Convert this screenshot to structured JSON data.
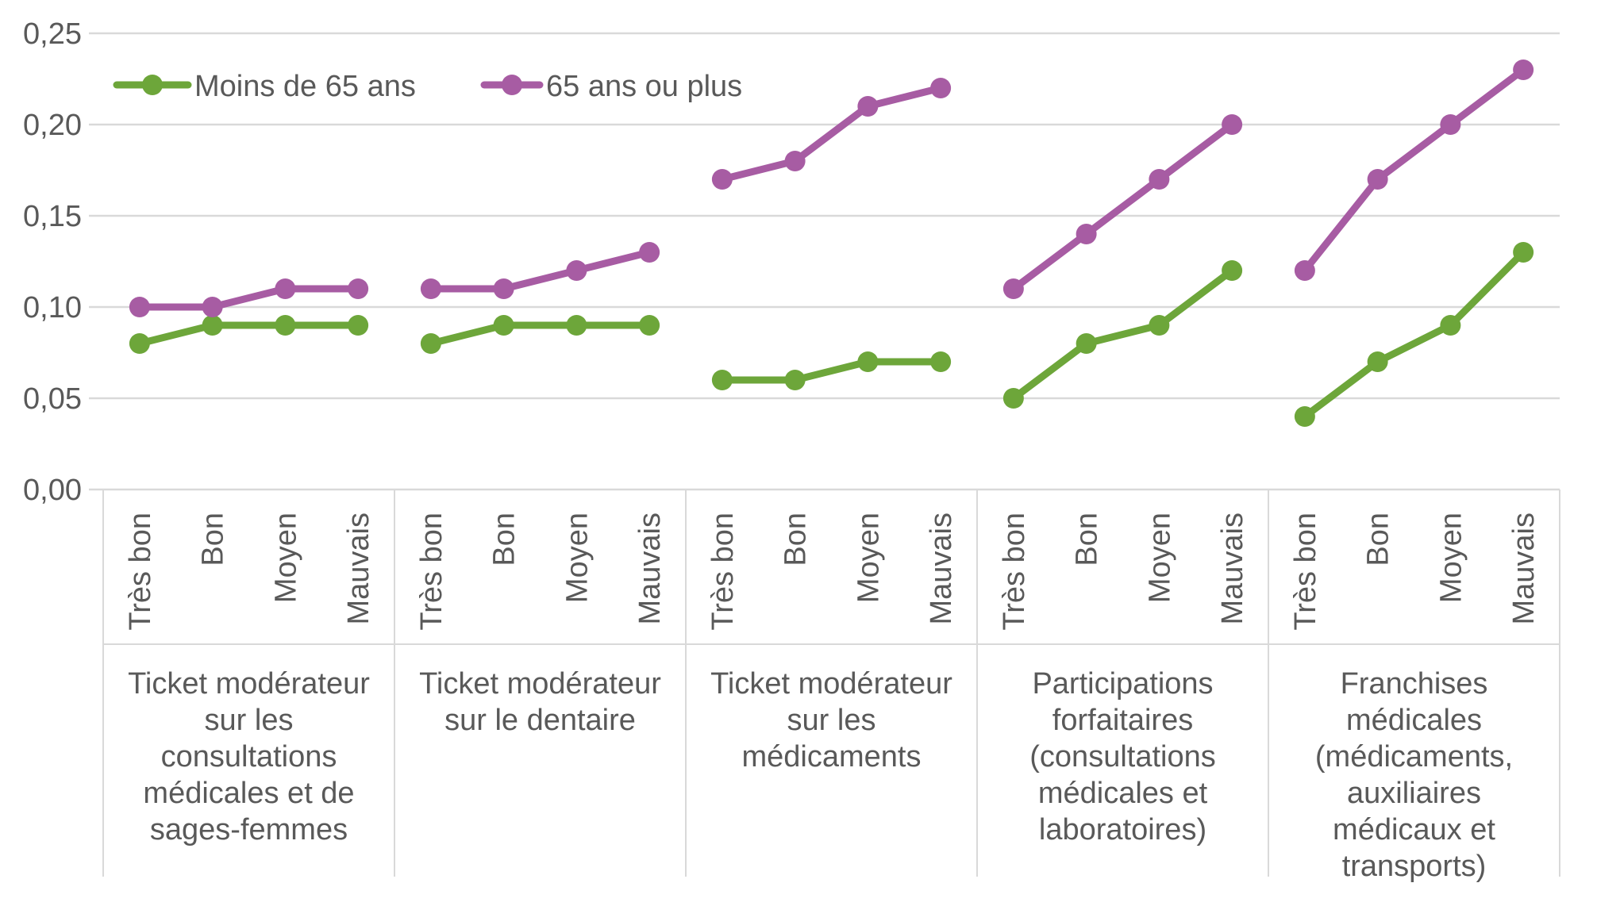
{
  "chart_data": {
    "type": "line",
    "title": "",
    "ylabel": "",
    "xlabel": "",
    "ylim": [
      0,
      0.25
    ],
    "grid": true,
    "legend_position": "top-left-inside",
    "yticks": [
      {
        "value": 0.0,
        "label": "0,00"
      },
      {
        "value": 0.05,
        "label": "0,05"
      },
      {
        "value": 0.1,
        "label": "0,10"
      },
      {
        "value": 0.15,
        "label": "0,15"
      },
      {
        "value": 0.2,
        "label": "0,20"
      },
      {
        "value": 0.25,
        "label": "0,25"
      }
    ],
    "categories_per_group": [
      "Très bon",
      "Bon",
      "Moyen",
      "Mauvais"
    ],
    "groups": [
      {
        "label": "Ticket modérateur sur les consultations médicales et de sages-femmes",
        "label_lines": [
          "Ticket modérateur",
          "sur les",
          "consultations",
          "médicales et de",
          "sages-femmes"
        ]
      },
      {
        "label": "Ticket modérateur sur le dentaire",
        "label_lines": [
          "Ticket modérateur",
          "sur le dentaire"
        ]
      },
      {
        "label": "Ticket modérateur sur les médicaments",
        "label_lines": [
          "Ticket modérateur",
          "sur les",
          "médicaments"
        ]
      },
      {
        "label": "Participations forfaitaires (consultations médicales et laboratoires)",
        "label_lines": [
          "Participations",
          "forfaitaires",
          "(consultations",
          "médicales et",
          "laboratoires)"
        ]
      },
      {
        "label": "Franchises médicales (médicaments, auxiliaires médicaux et transports)",
        "label_lines": [
          "Franchises",
          "médicales",
          "(médicaments,",
          "auxiliaires",
          "médicaux et",
          "transports)"
        ]
      }
    ],
    "series": [
      {
        "name": "Moins de 65 ans",
        "color": "#6DA63A",
        "values_by_group": [
          [
            0.08,
            0.09,
            0.09,
            0.09
          ],
          [
            0.08,
            0.09,
            0.09,
            0.09
          ],
          [
            0.06,
            0.06,
            0.07,
            0.07
          ],
          [
            0.05,
            0.08,
            0.09,
            0.12
          ],
          [
            0.04,
            0.07,
            0.09,
            0.13
          ]
        ]
      },
      {
        "name": "65 ans ou plus",
        "color": "#A75CA3",
        "values_by_group": [
          [
            0.1,
            0.1,
            0.11,
            0.11
          ],
          [
            0.11,
            0.11,
            0.12,
            0.13
          ],
          [
            0.17,
            0.18,
            0.21,
            0.22
          ],
          [
            0.11,
            0.14,
            0.17,
            0.2
          ],
          [
            0.12,
            0.17,
            0.2,
            0.23
          ]
        ]
      }
    ],
    "colors": {
      "gridline": "#D9D9D9",
      "axis_box": "#D9D9D9",
      "text": "#595959",
      "background": "#FFFFFF"
    }
  }
}
